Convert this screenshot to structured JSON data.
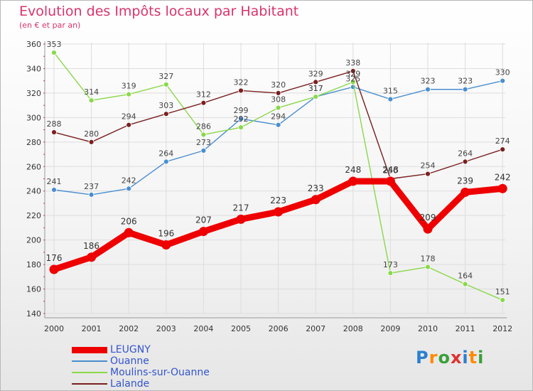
{
  "chart_data": {
    "type": "line",
    "title": "Evolution des Impôts locaux par Habitant",
    "subtitle": "(en € et par an)",
    "xlabel": "",
    "ylabel": "",
    "categories": [
      "2000",
      "2001",
      "2002",
      "2003",
      "2004",
      "2005",
      "2006",
      "2007",
      "2008",
      "2009",
      "2010",
      "2011",
      "2012"
    ],
    "ylim": [
      140,
      360
    ],
    "yticks": [
      140,
      160,
      180,
      200,
      220,
      240,
      260,
      280,
      300,
      320,
      340,
      360
    ],
    "grid": true,
    "series": [
      {
        "name": "LEUGNY",
        "color": "#ee0000",
        "values": [
          176,
          186,
          206,
          196,
          207,
          217,
          223,
          233,
          248,
          248,
          209,
          239,
          242
        ]
      },
      {
        "name": "Ouanne",
        "color": "#4a8ed0",
        "values": [
          241,
          237,
          242,
          264,
          273,
          299,
          294,
          317,
          325,
          315,
          323,
          323,
          330
        ]
      },
      {
        "name": "Moulins-sur-Ouanne",
        "color": "#8ad84a",
        "values": [
          353,
          314,
          319,
          327,
          286,
          292,
          308,
          317,
          329,
          173,
          178,
          164,
          151
        ]
      },
      {
        "name": "Lalande",
        "color": "#7a2020",
        "values": [
          288,
          280,
          294,
          303,
          312,
          322,
          320,
          329,
          338,
          250,
          254,
          264,
          274
        ]
      }
    ]
  },
  "logo": {
    "text": "Proxiti",
    "colors": [
      "#2a7fd0",
      "#ff8a00",
      "#39a03a",
      "#e03030",
      "#2a7fd0",
      "#ff8a00",
      "#39a03a"
    ]
  }
}
